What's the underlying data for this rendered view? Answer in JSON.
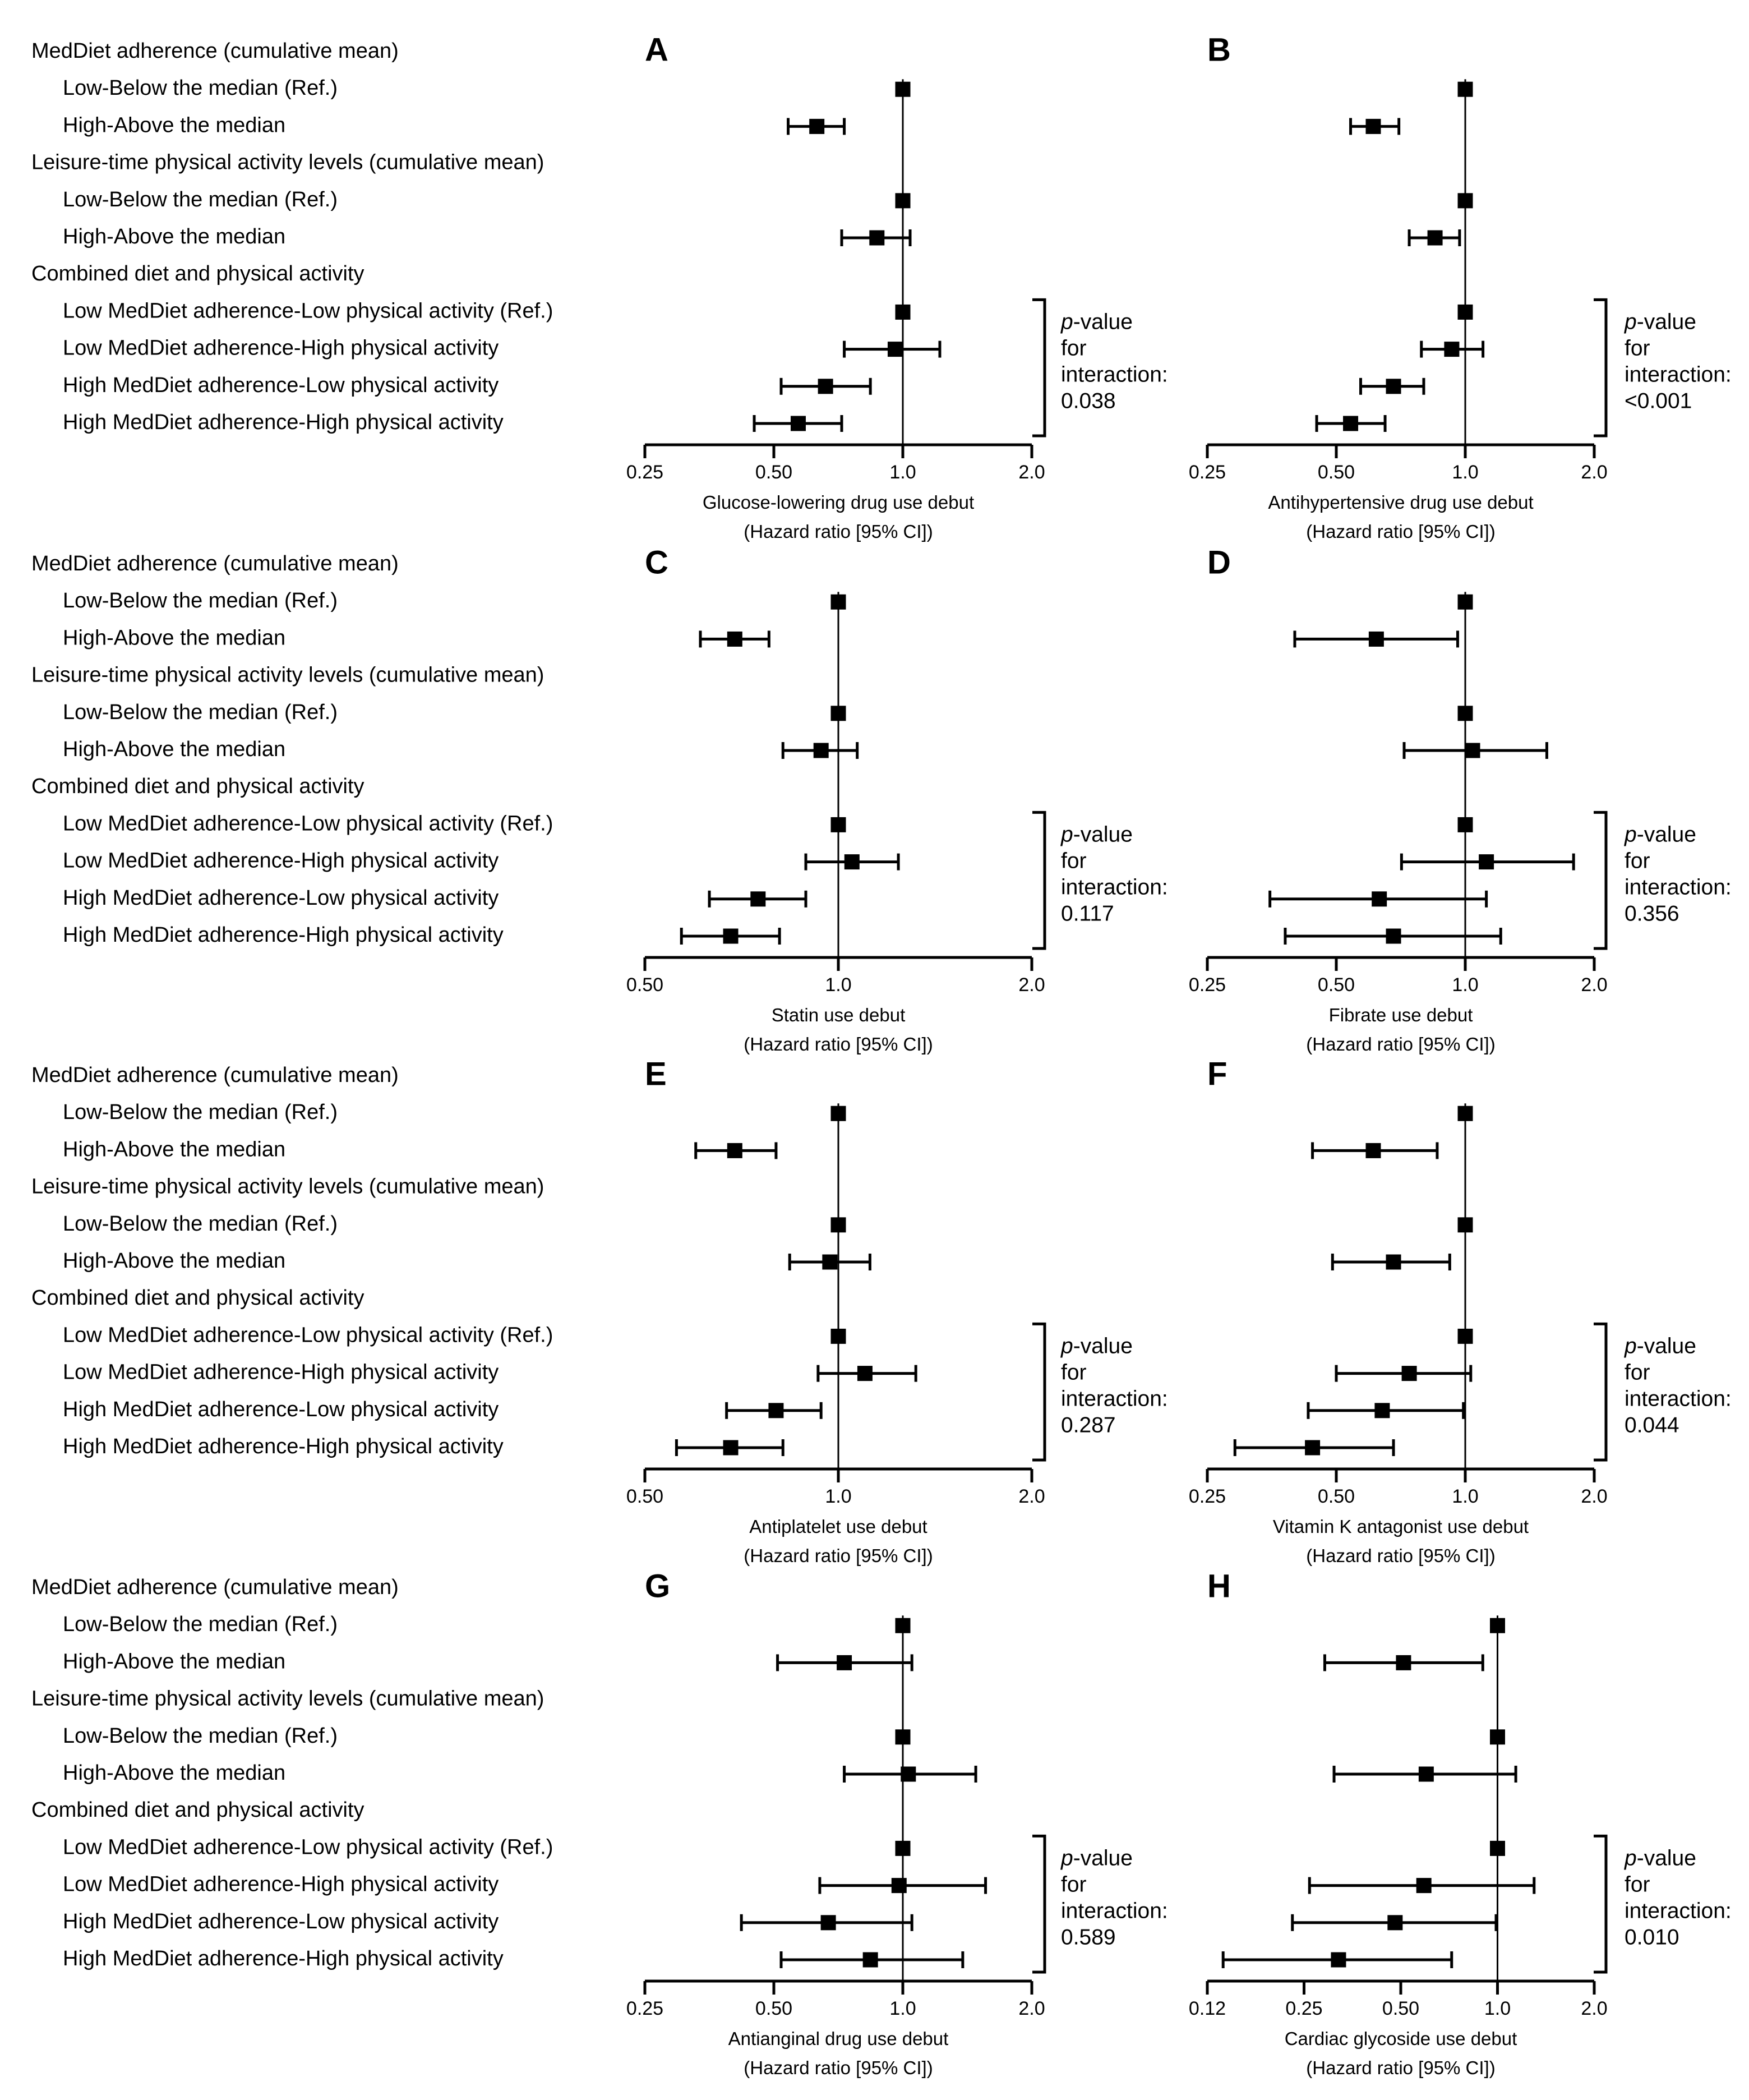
{
  "figure": {
    "block_rows": [
      "MedDiet adherence (cumulative mean)",
      "Low-Below the median (Ref.)",
      "High-Above the median",
      "Leisure-time physical activity levels (cumulative mean)",
      "Low-Below the median (Ref.)",
      "High-Above the median",
      "Combined diet and physical activity",
      "Low MedDiet adherence-Low physical activity (Ref.)",
      "Low MedDiet adherence-High physical activity",
      "High MedDiet adherence-Low physical activity",
      "High MedDiet adherence-High physical activity"
    ],
    "pvalue_label": [
      "p",
      "-value",
      "for",
      "interaction:"
    ],
    "hazard_label": "(Hazard ratio [95% CI])"
  },
  "chart_data": [
    {
      "type": "forest",
      "panel": "A",
      "xlabel": "Glucose-lowering drug use debut",
      "xscale": "log",
      "xlim": [
        0.25,
        2.0
      ],
      "ticks": [
        0.25,
        0.5,
        1.0,
        2.0
      ],
      "tick_labels": [
        "0.25",
        "0.50",
        "1.0",
        "2.0"
      ],
      "pvalue": "0.038",
      "points": [
        {
          "row": 1,
          "hr": 1.0,
          "lo": 1.0,
          "hi": 1.0
        },
        {
          "row": 2,
          "hr": 0.63,
          "lo": 0.54,
          "hi": 0.73
        },
        {
          "row": 4,
          "hr": 1.0,
          "lo": 1.0,
          "hi": 1.0
        },
        {
          "row": 5,
          "hr": 0.87,
          "lo": 0.72,
          "hi": 1.04
        },
        {
          "row": 7,
          "hr": 1.0,
          "lo": 1.0,
          "hi": 1.0
        },
        {
          "row": 8,
          "hr": 0.96,
          "lo": 0.73,
          "hi": 1.22
        },
        {
          "row": 9,
          "hr": 0.66,
          "lo": 0.52,
          "hi": 0.84
        },
        {
          "row": 10,
          "hr": 0.57,
          "lo": 0.45,
          "hi": 0.72
        }
      ]
    },
    {
      "type": "forest",
      "panel": "B",
      "xlabel": "Antihypertensive drug use debut",
      "xscale": "log",
      "xlim": [
        0.25,
        2.0
      ],
      "ticks": [
        0.25,
        0.5,
        1.0,
        2.0
      ],
      "tick_labels": [
        "0.25",
        "0.50",
        "1.0",
        "2.0"
      ],
      "pvalue": "<0.001",
      "points": [
        {
          "row": 1,
          "hr": 1.0,
          "lo": 1.0,
          "hi": 1.0
        },
        {
          "row": 2,
          "hr": 0.61,
          "lo": 0.54,
          "hi": 0.7
        },
        {
          "row": 4,
          "hr": 1.0,
          "lo": 1.0,
          "hi": 1.0
        },
        {
          "row": 5,
          "hr": 0.85,
          "lo": 0.74,
          "hi": 0.97
        },
        {
          "row": 7,
          "hr": 1.0,
          "lo": 1.0,
          "hi": 1.0
        },
        {
          "row": 8,
          "hr": 0.93,
          "lo": 0.79,
          "hi": 1.1
        },
        {
          "row": 9,
          "hr": 0.68,
          "lo": 0.57,
          "hi": 0.8
        },
        {
          "row": 10,
          "hr": 0.54,
          "lo": 0.45,
          "hi": 0.65
        }
      ]
    },
    {
      "type": "forest",
      "panel": "C",
      "xlabel": "Statin use debut",
      "xscale": "log",
      "xlim": [
        0.5,
        2.0
      ],
      "ticks": [
        0.5,
        1.0,
        2.0
      ],
      "tick_labels": [
        "0.50",
        "1.0",
        "2.0"
      ],
      "pvalue": "0.117",
      "points": [
        {
          "row": 1,
          "hr": 1.0,
          "lo": 1.0,
          "hi": 1.0
        },
        {
          "row": 2,
          "hr": 0.69,
          "lo": 0.61,
          "hi": 0.78
        },
        {
          "row": 4,
          "hr": 1.0,
          "lo": 1.0,
          "hi": 1.0
        },
        {
          "row": 5,
          "hr": 0.94,
          "lo": 0.82,
          "hi": 1.07
        },
        {
          "row": 7,
          "hr": 1.0,
          "lo": 1.0,
          "hi": 1.0
        },
        {
          "row": 8,
          "hr": 1.05,
          "lo": 0.89,
          "hi": 1.24
        },
        {
          "row": 9,
          "hr": 0.75,
          "lo": 0.63,
          "hi": 0.89
        },
        {
          "row": 10,
          "hr": 0.68,
          "lo": 0.57,
          "hi": 0.81
        }
      ]
    },
    {
      "type": "forest",
      "panel": "D",
      "xlabel": "Fibrate use debut",
      "xscale": "log",
      "xlim": [
        0.25,
        2.0
      ],
      "ticks": [
        0.25,
        0.5,
        1.0,
        2.0
      ],
      "tick_labels": [
        "0.25",
        "0.50",
        "1.0",
        "2.0"
      ],
      "pvalue": "0.356",
      "points": [
        {
          "row": 1,
          "hr": 1.0,
          "lo": 1.0,
          "hi": 1.0
        },
        {
          "row": 2,
          "hr": 0.62,
          "lo": 0.4,
          "hi": 0.96
        },
        {
          "row": 4,
          "hr": 1.0,
          "lo": 1.0,
          "hi": 1.0
        },
        {
          "row": 5,
          "hr": 1.04,
          "lo": 0.72,
          "hi": 1.55
        },
        {
          "row": 7,
          "hr": 1.0,
          "lo": 1.0,
          "hi": 1.0
        },
        {
          "row": 8,
          "hr": 1.12,
          "lo": 0.71,
          "hi": 1.79
        },
        {
          "row": 9,
          "hr": 0.63,
          "lo": 0.35,
          "hi": 1.12
        },
        {
          "row": 10,
          "hr": 0.68,
          "lo": 0.38,
          "hi": 1.21
        }
      ]
    },
    {
      "type": "forest",
      "panel": "E",
      "xlabel": "Antiplatelet use debut",
      "xscale": "log",
      "xlim": [
        0.5,
        2.0
      ],
      "ticks": [
        0.5,
        1.0,
        2.0
      ],
      "tick_labels": [
        "0.50",
        "1.0",
        "2.0"
      ],
      "pvalue": "0.287",
      "points": [
        {
          "row": 1,
          "hr": 1.0,
          "lo": 1.0,
          "hi": 1.0
        },
        {
          "row": 2,
          "hr": 0.69,
          "lo": 0.6,
          "hi": 0.8
        },
        {
          "row": 4,
          "hr": 1.0,
          "lo": 1.0,
          "hi": 1.0
        },
        {
          "row": 5,
          "hr": 0.97,
          "lo": 0.84,
          "hi": 1.12
        },
        {
          "row": 7,
          "hr": 1.0,
          "lo": 1.0,
          "hi": 1.0
        },
        {
          "row": 8,
          "hr": 1.1,
          "lo": 0.93,
          "hi": 1.32
        },
        {
          "row": 9,
          "hr": 0.8,
          "lo": 0.67,
          "hi": 0.94
        },
        {
          "row": 10,
          "hr": 0.68,
          "lo": 0.56,
          "hi": 0.82
        }
      ]
    },
    {
      "type": "forest",
      "panel": "F",
      "xlabel": "Vitamin K antagonist use debut",
      "xscale": "log",
      "xlim": [
        0.25,
        2.0
      ],
      "ticks": [
        0.25,
        0.5,
        1.0,
        2.0
      ],
      "tick_labels": [
        "0.25",
        "0.50",
        "1.0",
        "2.0"
      ],
      "pvalue": "0.044",
      "points": [
        {
          "row": 1,
          "hr": 1.0,
          "lo": 1.0,
          "hi": 1.0
        },
        {
          "row": 2,
          "hr": 0.61,
          "lo": 0.44,
          "hi": 0.86
        },
        {
          "row": 4,
          "hr": 1.0,
          "lo": 1.0,
          "hi": 1.0
        },
        {
          "row": 5,
          "hr": 0.68,
          "lo": 0.49,
          "hi": 0.92
        },
        {
          "row": 7,
          "hr": 1.0,
          "lo": 1.0,
          "hi": 1.0
        },
        {
          "row": 8,
          "hr": 0.74,
          "lo": 0.5,
          "hi": 1.03
        },
        {
          "row": 9,
          "hr": 0.64,
          "lo": 0.43,
          "hi": 0.99
        },
        {
          "row": 10,
          "hr": 0.44,
          "lo": 0.29,
          "hi": 0.68
        }
      ]
    },
    {
      "type": "forest",
      "panel": "G",
      "xlabel": "Antianginal drug use debut",
      "xscale": "log",
      "xlim": [
        0.25,
        2.0
      ],
      "ticks": [
        0.25,
        0.5,
        1.0,
        2.0
      ],
      "tick_labels": [
        "0.25",
        "0.50",
        "1.0",
        "2.0"
      ],
      "pvalue": "0.589",
      "points": [
        {
          "row": 1,
          "hr": 1.0,
          "lo": 1.0,
          "hi": 1.0
        },
        {
          "row": 2,
          "hr": 0.73,
          "lo": 0.51,
          "hi": 1.05
        },
        {
          "row": 4,
          "hr": 1.0,
          "lo": 1.0,
          "hi": 1.0
        },
        {
          "row": 5,
          "hr": 1.03,
          "lo": 0.73,
          "hi": 1.48
        },
        {
          "row": 7,
          "hr": 1.0,
          "lo": 1.0,
          "hi": 1.0
        },
        {
          "row": 8,
          "hr": 0.98,
          "lo": 0.64,
          "hi": 1.56
        },
        {
          "row": 9,
          "hr": 0.67,
          "lo": 0.42,
          "hi": 1.05
        },
        {
          "row": 10,
          "hr": 0.84,
          "lo": 0.52,
          "hi": 1.38
        }
      ]
    },
    {
      "type": "forest",
      "panel": "H",
      "xlabel": "Cardiac glycoside use debut",
      "xscale": "log",
      "xlim": [
        0.125,
        2.0
      ],
      "ticks": [
        0.125,
        0.25,
        0.5,
        1.0,
        2.0
      ],
      "tick_labels": [
        "0.12",
        "0.25",
        "0.50",
        "1.0",
        "2.0"
      ],
      "pvalue": "0.010",
      "points": [
        {
          "row": 1,
          "hr": 1.0,
          "lo": 1.0,
          "hi": 1.0
        },
        {
          "row": 2,
          "hr": 0.51,
          "lo": 0.29,
          "hi": 0.9
        },
        {
          "row": 4,
          "hr": 1.0,
          "lo": 1.0,
          "hi": 1.0
        },
        {
          "row": 5,
          "hr": 0.6,
          "lo": 0.31,
          "hi": 1.14
        },
        {
          "row": 7,
          "hr": 1.0,
          "lo": 1.0,
          "hi": 1.0
        },
        {
          "row": 8,
          "hr": 0.59,
          "lo": 0.26,
          "hi": 1.3
        },
        {
          "row": 9,
          "hr": 0.48,
          "lo": 0.23,
          "hi": 0.99
        },
        {
          "row": 10,
          "hr": 0.32,
          "lo": 0.14,
          "hi": 0.72
        }
      ]
    }
  ]
}
